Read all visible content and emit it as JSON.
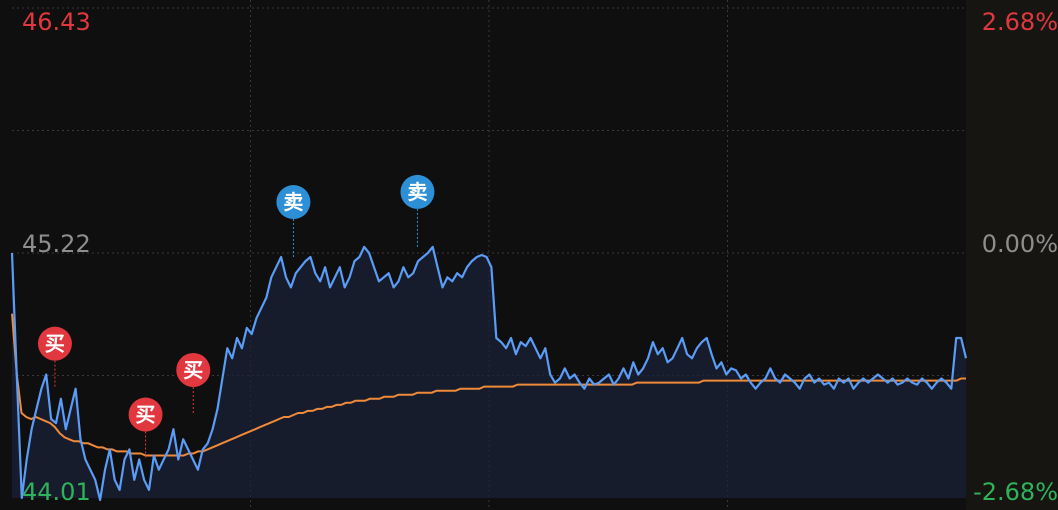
{
  "colors": {
    "background": "#0f0f10",
    "price_line": "#5b9cf6",
    "avg_line": "#ef8a3a",
    "up_red": "#e0383e",
    "down_green": "#2fb35a",
    "neutral_grey": "#8e8e8e",
    "sell_marker": "#2d8fd6",
    "buy_marker": "#e0383e"
  },
  "chart_data": {
    "type": "line",
    "price_axis": {
      "max": "46.43",
      "mid": "45.22",
      "min": "44.01"
    },
    "percent_axis": {
      "max": "2.68%",
      "mid": "0.00%",
      "min": "-2.68%"
    },
    "ylim": [
      44.01,
      46.43
    ],
    "x_range": [
      0,
      200
    ],
    "series": [
      {
        "values": [
          45.22,
          44.6,
          44.01,
          44.2,
          44.35,
          44.45,
          44.55,
          44.62,
          44.4,
          44.38,
          44.5,
          44.35,
          44.45,
          44.55,
          44.3,
          44.2,
          44.15,
          44.1,
          44.0,
          44.15,
          44.25,
          44.1,
          44.05,
          44.2,
          44.25,
          44.1,
          44.2,
          44.1,
          44.05,
          44.22,
          44.15,
          44.2,
          44.25,
          44.35,
          44.2,
          44.3,
          44.25,
          44.2,
          44.15,
          44.25,
          44.28,
          44.35,
          44.45,
          44.6,
          44.75,
          44.7,
          44.8,
          44.75,
          44.85,
          44.82,
          44.9,
          44.95,
          45.0,
          45.1,
          45.15,
          45.2,
          45.1,
          45.05,
          45.12,
          45.15,
          45.18,
          45.2,
          45.12,
          45.08,
          45.15,
          45.05,
          45.1,
          45.15,
          45.05,
          45.1,
          45.18,
          45.2,
          45.25,
          45.22,
          45.15,
          45.08,
          45.1,
          45.12,
          45.05,
          45.08,
          45.15,
          45.1,
          45.12,
          45.18,
          45.2,
          45.22,
          45.25,
          45.15,
          45.05,
          45.1,
          45.08,
          45.12,
          45.1,
          45.15,
          45.18,
          45.2,
          45.21,
          45.2,
          45.15,
          44.8,
          44.78,
          44.75,
          44.8,
          44.72,
          44.78,
          44.76,
          44.8,
          44.75,
          44.7,
          44.75,
          44.62,
          44.58,
          44.6,
          44.65,
          44.6,
          44.62,
          44.58,
          44.55,
          44.6,
          44.57,
          44.58,
          44.6,
          44.62,
          44.57,
          44.6,
          44.65,
          44.6,
          44.68,
          44.62,
          44.65,
          44.7,
          44.78,
          44.72,
          44.75,
          44.68,
          44.7,
          44.75,
          44.8,
          44.72,
          44.7,
          44.75,
          44.78,
          44.8,
          44.72,
          44.65,
          44.68,
          44.62,
          44.65,
          44.64,
          44.6,
          44.62,
          44.58,
          44.55,
          44.58,
          44.6,
          44.65,
          44.6,
          44.58,
          44.62,
          44.6,
          44.58,
          44.55,
          44.6,
          44.62,
          44.58,
          44.6,
          44.57,
          44.58,
          44.55,
          44.6,
          44.58,
          44.6,
          44.55,
          44.58,
          44.6,
          44.58,
          44.6,
          44.62,
          44.6,
          44.58,
          44.6,
          44.57,
          44.58,
          44.6,
          44.58,
          44.57,
          44.6,
          44.58,
          44.55,
          44.58,
          44.6,
          44.58,
          44.55,
          44.8,
          44.8,
          44.7
        ]
      },
      {
        "values": [
          44.92,
          44.62,
          44.43,
          44.41,
          44.4,
          44.41,
          44.4,
          44.39,
          44.38,
          44.36,
          44.33,
          44.31,
          44.3,
          44.29,
          44.29,
          44.28,
          44.28,
          44.27,
          44.26,
          44.26,
          44.25,
          44.25,
          44.24,
          44.24,
          44.24,
          44.23,
          44.23,
          44.23,
          44.22,
          44.22,
          44.22,
          44.22,
          44.22,
          44.22,
          44.22,
          44.22,
          44.22,
          44.23,
          44.23,
          44.24,
          44.24,
          44.25,
          44.26,
          44.27,
          44.28,
          44.29,
          44.3,
          44.31,
          44.32,
          44.33,
          44.34,
          44.35,
          44.36,
          44.37,
          44.38,
          44.39,
          44.4,
          44.41,
          44.41,
          44.42,
          44.43,
          44.43,
          44.44,
          44.44,
          44.45,
          44.45,
          44.46,
          44.46,
          44.47,
          44.47,
          44.48,
          44.48,
          44.49,
          44.49,
          44.49,
          44.5,
          44.5,
          44.5,
          44.51,
          44.51,
          44.51,
          44.52,
          44.52,
          44.52,
          44.52,
          44.53,
          44.53,
          44.53,
          44.53,
          44.54,
          44.54,
          44.54,
          44.54,
          44.54,
          44.55,
          44.55,
          44.55,
          44.55,
          44.55,
          44.56,
          44.56,
          44.56,
          44.56,
          44.56,
          44.56,
          44.56,
          44.57,
          44.57,
          44.57,
          44.57,
          44.57,
          44.57,
          44.57,
          44.57,
          44.57,
          44.57,
          44.57,
          44.57,
          44.57,
          44.57,
          44.57,
          44.57,
          44.57,
          44.57,
          44.57,
          44.57,
          44.57,
          44.57,
          44.57,
          44.57,
          44.57,
          44.58,
          44.58,
          44.58,
          44.58,
          44.58,
          44.58,
          44.58,
          44.58,
          44.58,
          44.58,
          44.58,
          44.58,
          44.58,
          44.58,
          44.59,
          44.59,
          44.59,
          44.59,
          44.59,
          44.59,
          44.59,
          44.59,
          44.59,
          44.59,
          44.59,
          44.59,
          44.59,
          44.59,
          44.59,
          44.59,
          44.59,
          44.59,
          44.59,
          44.59,
          44.59,
          44.59,
          44.59,
          44.59,
          44.59,
          44.59,
          44.59,
          44.59,
          44.59,
          44.59,
          44.59,
          44.59,
          44.59,
          44.59,
          44.59,
          44.59,
          44.59,
          44.59,
          44.59,
          44.59,
          44.59,
          44.59,
          44.59,
          44.59,
          44.59,
          44.59,
          44.59,
          44.59,
          44.59,
          44.59,
          44.59,
          44.59,
          44.59,
          44.59,
          44.6,
          44.6
        ]
      }
    ],
    "markers": [
      {
        "label": "买",
        "x": 9,
        "price": 44.55,
        "kind": "buy"
      },
      {
        "label": "买",
        "x": 28,
        "price": 44.2,
        "kind": "buy"
      },
      {
        "label": "买",
        "x": 38,
        "price": 44.42,
        "kind": "buy"
      },
      {
        "label": "卖",
        "x": 59,
        "price": 45.2,
        "kind": "sell"
      },
      {
        "label": "卖",
        "x": 85,
        "price": 45.25,
        "kind": "sell"
      }
    ],
    "grid": true
  }
}
